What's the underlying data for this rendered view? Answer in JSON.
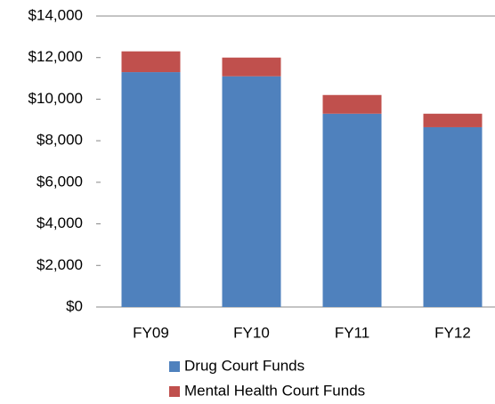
{
  "chart_data": {
    "type": "stacked_bar",
    "categories": [
      "FY09",
      "FY10",
      "FY11",
      "FY12"
    ],
    "series": [
      {
        "name": "Drug Court Funds",
        "color": "#4f81bd",
        "values": [
          11300,
          11100,
          9300,
          8650
        ]
      },
      {
        "name": "Mental Health Court Funds",
        "color": "#c0504d",
        "values": [
          1000,
          900,
          900,
          650
        ]
      }
    ],
    "ylim": [
      0,
      14000
    ],
    "yticks": [
      {
        "value": 0,
        "label": "$0"
      },
      {
        "value": 2000,
        "label": "$2,000"
      },
      {
        "value": 4000,
        "label": "$4,000"
      },
      {
        "value": 6000,
        "label": "$6,000"
      },
      {
        "value": 8000,
        "label": "$8,000"
      },
      {
        "value": 10000,
        "label": "$10,000"
      },
      {
        "value": 12000,
        "label": "$12,000"
      },
      {
        "value": 14000,
        "label": "$14,000"
      }
    ],
    "legend": "bottom"
  }
}
